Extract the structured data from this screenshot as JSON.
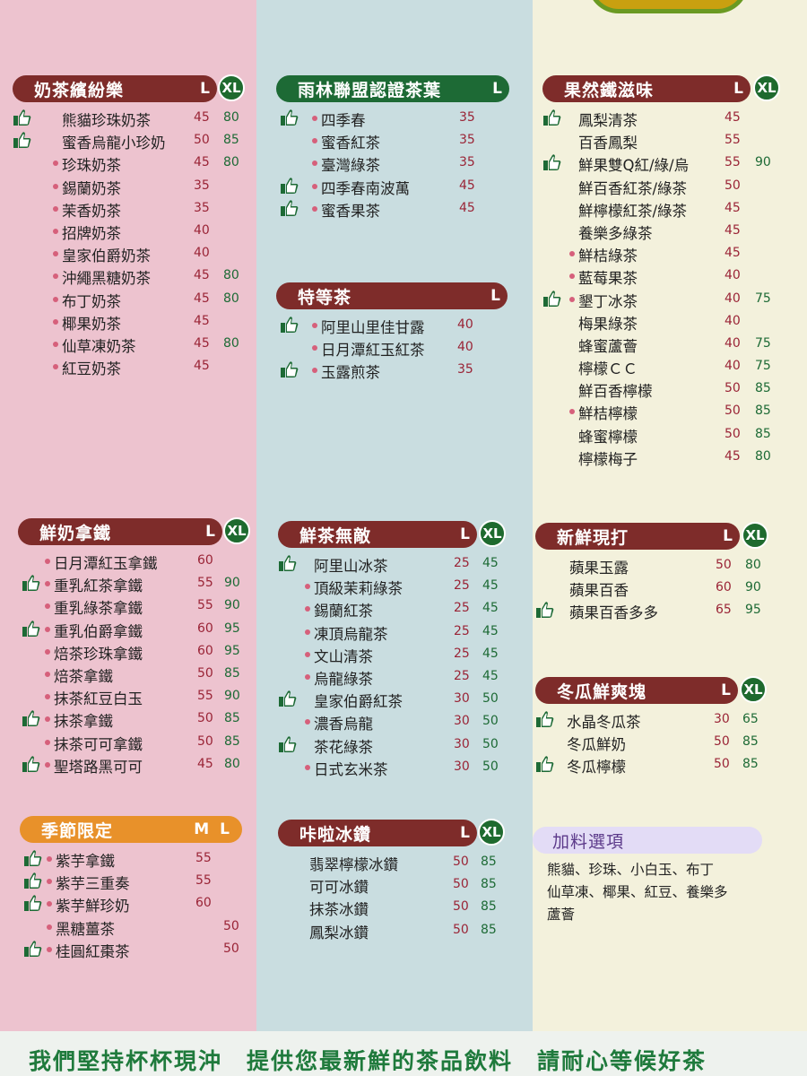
{
  "colors": {
    "brown": "#7e2c2a",
    "green": "#1d6a35",
    "orange": "#e8912a",
    "pink_panel": "#edc3cf",
    "blue_panel": "#c9dde0",
    "cream_panel": "#f3f1dc"
  },
  "sections": {
    "milk_tea": {
      "title": "奶茶繽紛樂",
      "size1": "L",
      "size2": "XL",
      "items": [
        {
          "name": "熊貓珍珠奶茶",
          "p1": "45",
          "p2": "80",
          "mark": "thumb"
        },
        {
          "name": "蜜香烏龍小珍奶",
          "p1": "50",
          "p2": "85",
          "mark": "thumb"
        },
        {
          "name": "珍珠奶茶",
          "p1": "45",
          "p2": "80",
          "mark": "dot"
        },
        {
          "name": "錫蘭奶茶",
          "p1": "35",
          "p2": "",
          "mark": "dot"
        },
        {
          "name": "茉香奶茶",
          "p1": "35",
          "p2": "",
          "mark": "dot"
        },
        {
          "name": "招牌奶茶",
          "p1": "40",
          "p2": "",
          "mark": "dot"
        },
        {
          "name": "皇家伯爵奶茶",
          "p1": "40",
          "p2": "",
          "mark": "dot"
        },
        {
          "name": "沖繩黑糖奶茶",
          "p1": "45",
          "p2": "80",
          "mark": "dot"
        },
        {
          "name": "布丁奶茶",
          "p1": "45",
          "p2": "80",
          "mark": "dot"
        },
        {
          "name": "椰果奶茶",
          "p1": "45",
          "p2": "",
          "mark": "dot"
        },
        {
          "name": "仙草凍奶茶",
          "p1": "45",
          "p2": "80",
          "mark": "dot"
        },
        {
          "name": "紅豆奶茶",
          "p1": "45",
          "p2": "",
          "mark": "dot"
        }
      ]
    },
    "rainforest": {
      "title": "雨林聯盟認證茶葉",
      "size1": "L",
      "items": [
        {
          "name": "四季春",
          "p1": "35",
          "p2": "",
          "mark": "thumb"
        },
        {
          "name": "蜜香紅茶",
          "p1": "35",
          "p2": "",
          "mark": "dot"
        },
        {
          "name": "臺灣綠茶",
          "p1": "35",
          "p2": "",
          "mark": "dot"
        },
        {
          "name": "四季春南波萬",
          "p1": "45",
          "p2": "",
          "mark": "thumb"
        },
        {
          "name": "蜜香果茶",
          "p1": "45",
          "p2": "",
          "mark": "thumb"
        }
      ]
    },
    "premium": {
      "title": "特等茶",
      "size1": "L",
      "items": [
        {
          "name": "阿里山里佳甘露",
          "p1": "40",
          "p2": "",
          "mark": "thumb"
        },
        {
          "name": "日月潭紅玉紅茶",
          "p1": "40",
          "p2": "",
          "mark": "dot"
        },
        {
          "name": "玉露煎茶",
          "p1": "35",
          "p2": "",
          "mark": "thumb"
        }
      ]
    },
    "fruit": {
      "title": "果然鐵滋味",
      "size1": "L",
      "size2": "XL",
      "items": [
        {
          "name": "鳳梨清茶",
          "p1": "45",
          "p2": "",
          "mark": "thumb"
        },
        {
          "name": "百香鳳梨",
          "p1": "55",
          "p2": "",
          "mark": ""
        },
        {
          "name": "鮮果雙Q紅/綠/烏",
          "p1": "55",
          "p2": "90",
          "mark": "thumb"
        },
        {
          "name": "鮮百香紅茶/綠茶",
          "p1": "50",
          "p2": "",
          "mark": ""
        },
        {
          "name": "鮮檸檬紅茶/綠茶",
          "p1": "45",
          "p2": "",
          "mark": ""
        },
        {
          "name": "養樂多綠茶",
          "p1": "45",
          "p2": "",
          "mark": ""
        },
        {
          "name": "鮮桔綠茶",
          "p1": "45",
          "p2": "",
          "mark": "dot"
        },
        {
          "name": "藍莓果茶",
          "p1": "40",
          "p2": "",
          "mark": "dot"
        },
        {
          "name": "墾丁冰茶",
          "p1": "40",
          "p2": "75",
          "mark": "thumbdot"
        },
        {
          "name": "梅果綠茶",
          "p1": "40",
          "p2": "",
          "mark": ""
        },
        {
          "name": "蜂蜜蘆薈",
          "p1": "40",
          "p2": "75",
          "mark": ""
        },
        {
          "name": "檸檬ＣＣ",
          "p1": "40",
          "p2": "75",
          "mark": ""
        },
        {
          "name": "鮮百香檸檬",
          "p1": "50",
          "p2": "85",
          "mark": ""
        },
        {
          "name": "鮮桔檸檬",
          "p1": "50",
          "p2": "85",
          "mark": "dot"
        },
        {
          "name": "蜂蜜檸檬",
          "p1": "50",
          "p2": "85",
          "mark": ""
        },
        {
          "name": "檸檬梅子",
          "p1": "45",
          "p2": "80",
          "mark": ""
        }
      ]
    },
    "latte": {
      "title": "鮮奶拿鐵",
      "size1": "L",
      "size2": "XL",
      "items": [
        {
          "name": "日月潭紅玉拿鐵",
          "p1": "60",
          "p2": "",
          "mark": "dot"
        },
        {
          "name": "重乳紅茶拿鐵",
          "p1": "55",
          "p2": "90",
          "mark": "thumb"
        },
        {
          "name": "重乳綠茶拿鐵",
          "p1": "55",
          "p2": "90",
          "mark": "dot"
        },
        {
          "name": "重乳伯爵拿鐵",
          "p1": "60",
          "p2": "95",
          "mark": "thumb"
        },
        {
          "name": "焙茶珍珠拿鐵",
          "p1": "60",
          "p2": "95",
          "mark": "dot"
        },
        {
          "name": "焙茶拿鐵",
          "p1": "50",
          "p2": "85",
          "mark": "dot"
        },
        {
          "name": "抹茶紅豆白玉",
          "p1": "55",
          "p2": "90",
          "mark": "dot"
        },
        {
          "name": "抹茶拿鐵",
          "p1": "50",
          "p2": "85",
          "mark": "thumb"
        },
        {
          "name": "抹茶可可拿鐵",
          "p1": "50",
          "p2": "85",
          "mark": "dot"
        },
        {
          "name": "聖塔路黑可可",
          "p1": "45",
          "p2": "80",
          "mark": "thumb"
        }
      ]
    },
    "fresh_tea": {
      "title": "鮮茶無敵",
      "size1": "L",
      "size2": "XL",
      "items": [
        {
          "name": "阿里山冰茶",
          "p1": "25",
          "p2": "45",
          "mark": "thumb"
        },
        {
          "name": "頂級茉莉綠茶",
          "p1": "25",
          "p2": "45",
          "mark": "dot"
        },
        {
          "name": "錫蘭紅茶",
          "p1": "25",
          "p2": "45",
          "mark": "dot"
        },
        {
          "name": "凍頂烏龍茶",
          "p1": "25",
          "p2": "45",
          "mark": "dot"
        },
        {
          "name": "文山清茶",
          "p1": "25",
          "p2": "45",
          "mark": "dot"
        },
        {
          "name": "烏龍綠茶",
          "p1": "25",
          "p2": "45",
          "mark": "dot"
        },
        {
          "name": "皇家伯爵紅茶",
          "p1": "30",
          "p2": "50",
          "mark": "thumb"
        },
        {
          "name": "濃香烏龍",
          "p1": "30",
          "p2": "50",
          "mark": "dot"
        },
        {
          "name": "茶花綠茶",
          "p1": "30",
          "p2": "50",
          "mark": "thumb"
        },
        {
          "name": "日式玄米茶",
          "p1": "30",
          "p2": "50",
          "mark": "dot"
        }
      ]
    },
    "fresh_shake": {
      "title": "新鮮現打",
      "size1": "L",
      "size2": "XL",
      "items": [
        {
          "name": "蘋果玉露",
          "p1": "50",
          "p2": "80",
          "mark": ""
        },
        {
          "name": "蘋果百香",
          "p1": "60",
          "p2": "90",
          "mark": ""
        },
        {
          "name": "蘋果百香多多",
          "p1": "65",
          "p2": "95",
          "mark": "thumb"
        }
      ]
    },
    "winter_melon": {
      "title": "冬瓜鮮爽塊",
      "size1": "L",
      "size2": "XL",
      "items": [
        {
          "name": "水晶冬瓜茶",
          "p1": "30",
          "p2": "65",
          "mark": "thumb"
        },
        {
          "name": "冬瓜鮮奶",
          "p1": "50",
          "p2": "85",
          "mark": ""
        },
        {
          "name": "冬瓜檸檬",
          "p1": "50",
          "p2": "85",
          "mark": "thumb"
        }
      ]
    },
    "seasonal": {
      "title": "季節限定",
      "size1": "M",
      "size2": "L",
      "items": [
        {
          "name": "紫芋拿鐵",
          "p1": "55",
          "p2": "",
          "mark": "thumb"
        },
        {
          "name": "紫芋三重奏",
          "p1": "55",
          "p2": "",
          "mark": "thumb"
        },
        {
          "name": "紫芋鮮珍奶",
          "p1": "60",
          "p2": "",
          "mark": "thumb"
        },
        {
          "name": "黑糖薑茶",
          "p1": "",
          "p2": "50",
          "mark": "dot"
        },
        {
          "name": "桂圓紅棗茶",
          "p1": "",
          "p2": "50",
          "mark": "thumb"
        }
      ]
    },
    "kala_ice": {
      "title": "咔啦冰鑽",
      "size1": "L",
      "size2": "XL",
      "items": [
        {
          "name": "翡翠檸檬冰鑽",
          "p1": "50",
          "p2": "85",
          "mark": ""
        },
        {
          "name": "可可冰鑽",
          "p1": "50",
          "p2": "85",
          "mark": ""
        },
        {
          "name": "抹茶冰鑽",
          "p1": "50",
          "p2": "85",
          "mark": ""
        },
        {
          "name": "鳳梨冰鑽",
          "p1": "50",
          "p2": "85",
          "mark": ""
        }
      ]
    },
    "toppings": {
      "title": "加料選項",
      "lines": [
        "熊貓、珍珠、小白玉、布丁",
        "仙草凍、椰果、紅豆、養樂多",
        "蘆薈"
      ]
    }
  },
  "footer": "我們堅持杯杯現沖　提供您最新鮮的茶品飲料　請耐心等候好茶"
}
